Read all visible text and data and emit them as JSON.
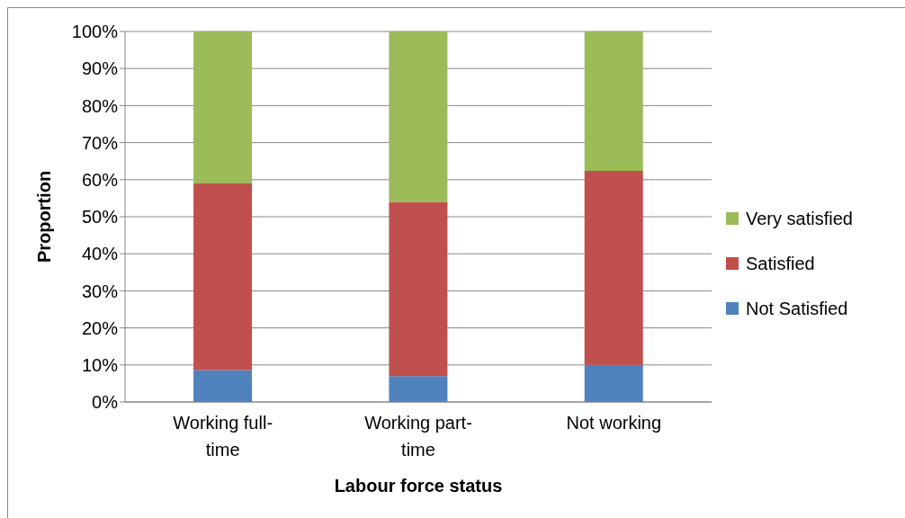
{
  "chart_data": {
    "type": "bar",
    "stacked": true,
    "xlabel": "Labour force status",
    "ylabel": "Proportion",
    "categories": [
      "Working full-time",
      "Working part-time",
      "Not working"
    ],
    "series": [
      {
        "name": "Not Satisfied",
        "color": "#4f81bd",
        "values": [
          8.6,
          7,
          10
        ]
      },
      {
        "name": "Satisfied",
        "color": "#c0504d",
        "values": [
          50.4,
          47,
          52.4
        ]
      },
      {
        "name": "Very satisfied",
        "color": "#9bbb59",
        "values": [
          41,
          46,
          37.6
        ]
      }
    ],
    "ylim": [
      0,
      100
    ],
    "yticks": [
      {
        "value": 0,
        "label": "0%"
      },
      {
        "value": 10,
        "label": "10%"
      },
      {
        "value": 20,
        "label": "20%"
      },
      {
        "value": 30,
        "label": "30%"
      },
      {
        "value": 40,
        "label": "40%"
      },
      {
        "value": 50,
        "label": "50%"
      },
      {
        "value": 60,
        "label": "60%"
      },
      {
        "value": 70,
        "label": "70%"
      },
      {
        "value": 80,
        "label": "80%"
      },
      {
        "value": 90,
        "label": "90%"
      },
      {
        "value": 100,
        "label": "100%"
      }
    ],
    "grid": "y",
    "legend": "right"
  }
}
